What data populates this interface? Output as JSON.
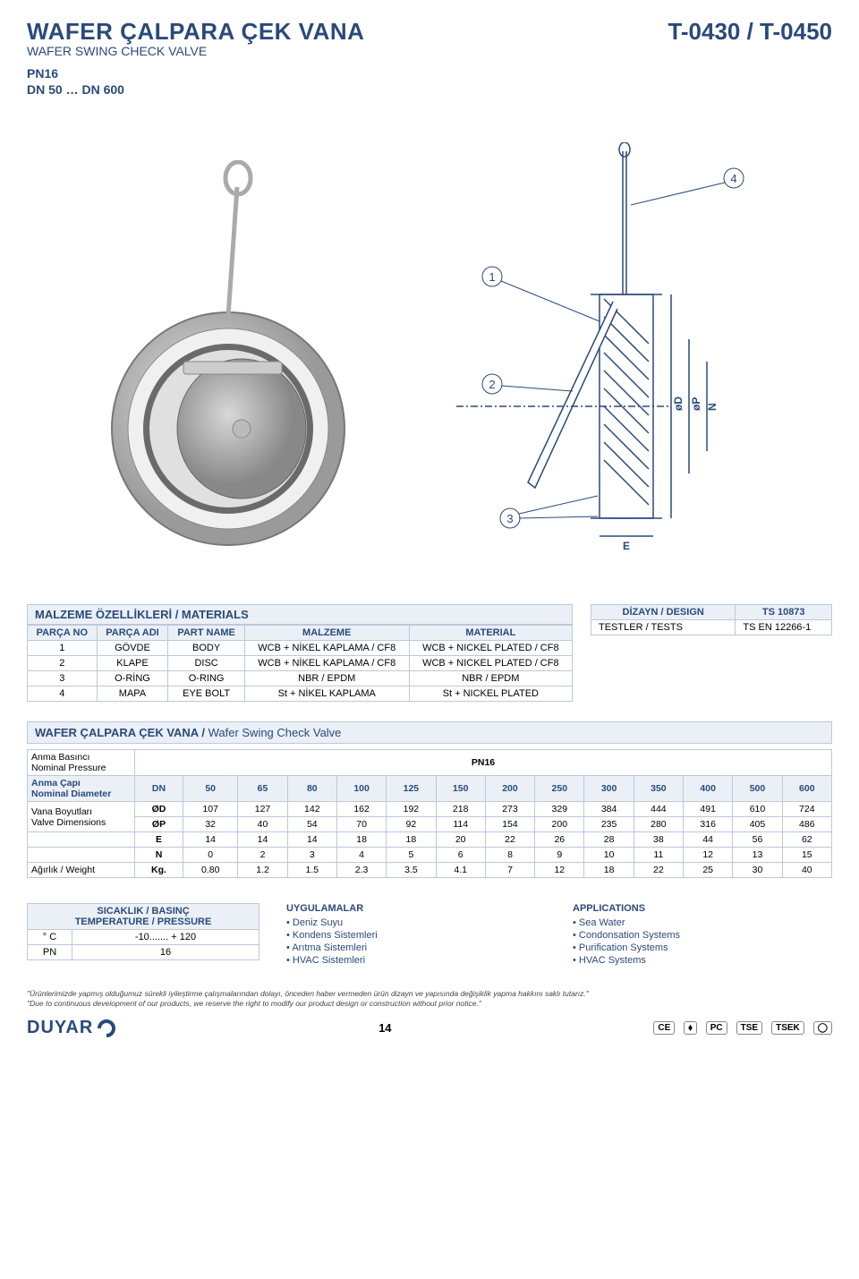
{
  "header": {
    "title_tr": "WAFER ÇALPARA ÇEK VANA",
    "title_en": "WAFER SWING CHECK VALVE",
    "code": "T-0430 / T-0450",
    "spec1": "PN16",
    "spec2": "DN 50 … DN 600"
  },
  "colors": {
    "brand": "#2a4a7a",
    "header_bg": "#eaf0f6",
    "border": "#bcc8da"
  },
  "materials": {
    "section_title": "MALZEME ÖZELLİKLERİ / MATERIALS",
    "columns": [
      "PARÇA NO",
      "PARÇA ADI",
      "PART NAME",
      "MALZEME",
      "MATERIAL"
    ],
    "rows": [
      [
        "1",
        "GÖVDE",
        "BODY",
        "WCB + NİKEL KAPLAMA / CF8",
        "WCB + NICKEL PLATED / CF8"
      ],
      [
        "2",
        "KLAPE",
        "DISC",
        "WCB + NİKEL KAPLAMA / CF8",
        "WCB + NICKEL PLATED / CF8"
      ],
      [
        "3",
        "O-RİNG",
        "O-RING",
        "NBR / EPDM",
        "NBR / EPDM"
      ],
      [
        "4",
        "MAPA",
        "EYE BOLT",
        "St + NİKEL KAPLAMA",
        "St + NICKEL PLATED"
      ]
    ]
  },
  "design": {
    "title": "DİZAYN / DESIGN",
    "title_val": "TS 10873",
    "tests_label": "TESTLER / TESTS",
    "tests_val": "TS EN 12266-1"
  },
  "diagram": {
    "callouts": [
      "1",
      "2",
      "3",
      "4"
    ],
    "dims": [
      "E",
      "N",
      "øP",
      "øD"
    ]
  },
  "dimensions": {
    "section_title_tr": "WAFER ÇALPARA ÇEK VANA /",
    "section_title_en": " Wafer Swing Check Valve",
    "pressure_label_tr": "Anma Basıncı",
    "pressure_label_en": "Nominal Pressure",
    "pressure_val": "PN16",
    "diameter_label_tr": "Anma Çapı",
    "diameter_label_en": "Nominal Diameter",
    "dim_label_tr": "Vana Boyutları",
    "dim_label_en": "Valve Dimensions",
    "weight_label": "Ağırlık / Weight",
    "dn_label": "DN",
    "dn_values": [
      "50",
      "65",
      "80",
      "100",
      "125",
      "150",
      "200",
      "250",
      "300",
      "350",
      "400",
      "500",
      "600"
    ],
    "rows": [
      {
        "key": "ØD",
        "vals": [
          "107",
          "127",
          "142",
          "162",
          "192",
          "218",
          "273",
          "329",
          "384",
          "444",
          "491",
          "610",
          "724"
        ]
      },
      {
        "key": "ØP",
        "vals": [
          "32",
          "40",
          "54",
          "70",
          "92",
          "114",
          "154",
          "200",
          "235",
          "280",
          "316",
          "405",
          "486"
        ]
      },
      {
        "key": "E",
        "vals": [
          "14",
          "14",
          "14",
          "18",
          "18",
          "20",
          "22",
          "26",
          "28",
          "38",
          "44",
          "56",
          "62"
        ]
      },
      {
        "key": "N",
        "vals": [
          "0",
          "2",
          "3",
          "4",
          "5",
          "6",
          "8",
          "9",
          "10",
          "11",
          "12",
          "13",
          "15"
        ]
      },
      {
        "key": "Kg.",
        "vals": [
          "0.80",
          "1.2",
          "1.5",
          "2.3",
          "3.5",
          "4.1",
          "7",
          "12",
          "18",
          "22",
          "25",
          "30",
          "40"
        ]
      }
    ]
  },
  "temp": {
    "title_tr": "SICAKLIK / BASINÇ",
    "title_en": "TEMPERATURE / PRESSURE",
    "c_label": "° C",
    "c_val": "-10....... + 120",
    "pn_label": "PN",
    "pn_val": "16"
  },
  "apps_tr": {
    "title": "UYGULAMALAR",
    "items": [
      "Deniz Suyu",
      "Kondens Sistemleri",
      "Arıtma Sistemleri",
      "HVAC Sistemleri"
    ]
  },
  "apps_en": {
    "title": "APPLICATIONS",
    "items": [
      "Sea Water",
      "Condonsation Systems",
      "Purification Systems",
      "HVAC Systems"
    ]
  },
  "disclaimer": {
    "tr": "\"Ürünlerimizde yapmış olduğumuz sürekli iyileştirme çalışmalarından dolayı, önceden haber vermeden ürün dizayn ve yapısında değişiklik yapma hakkını saklı tutarız.\"",
    "en": "\"Due to continuous development of our products, we reserve the right to modify our product design or construction without prior notice.\""
  },
  "footer": {
    "logo": "DUYAR",
    "page": "14",
    "certs": [
      "CE",
      "⬧",
      "PC",
      "TSE",
      "TSEK",
      "◯"
    ]
  }
}
